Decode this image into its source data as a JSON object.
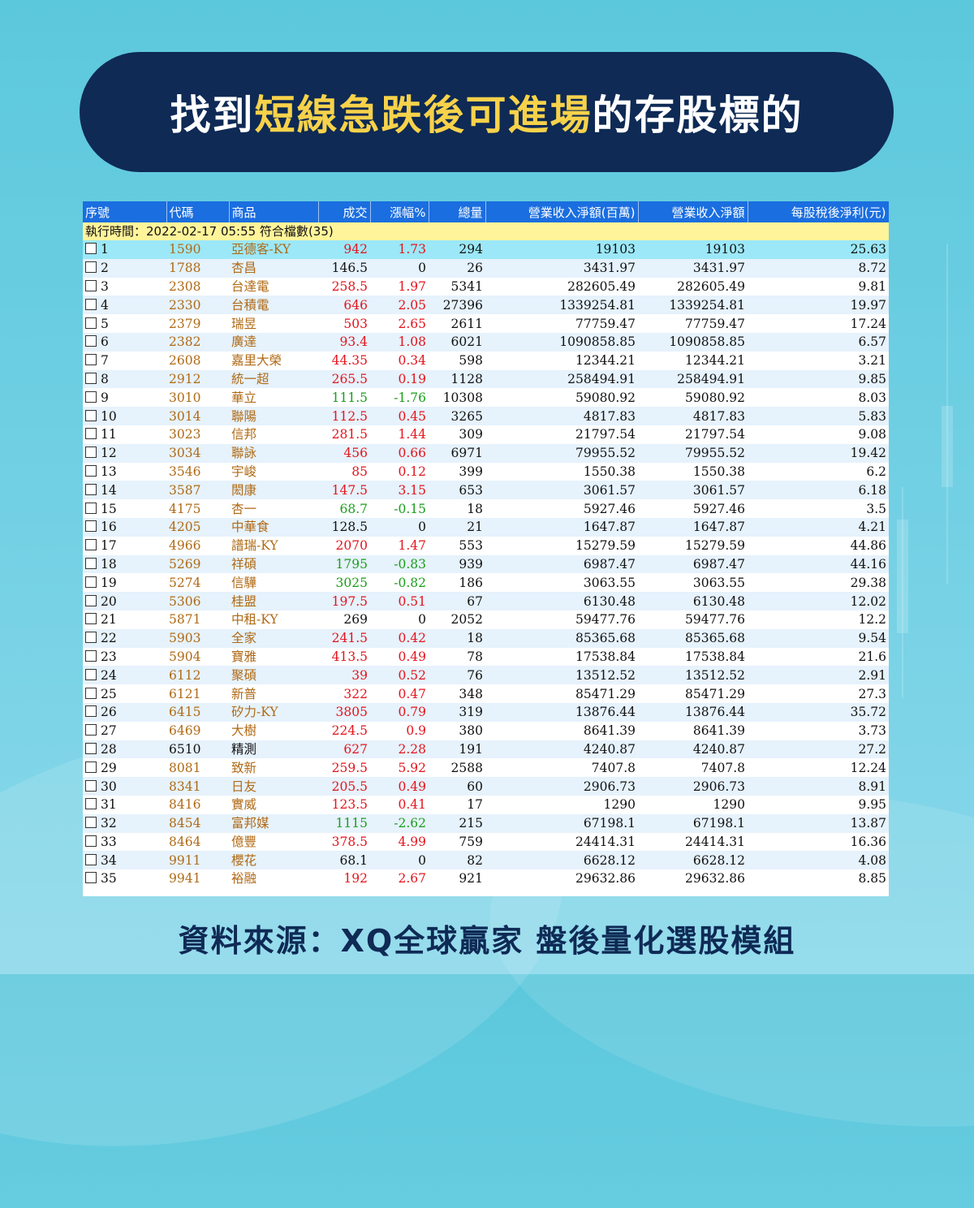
{
  "banner": {
    "title_part1": "找到",
    "title_highlight": "短線急跌後可進場",
    "title_part2": "的存股標的"
  },
  "table": {
    "columns": [
      "序號",
      "代碼",
      "商品",
      "成交",
      "漲幅%",
      "總量",
      "營業收入淨額(百萬)",
      "營業收入淨額",
      "每股稅後淨利(元)"
    ],
    "info_row": "執行時間：2022-02-17 05:55 符合檔數(35)",
    "rows": [
      {
        "no": "1",
        "code": "1590",
        "name": "亞德客-KY",
        "price": "942",
        "change": "1.73",
        "volume": "294",
        "rev_m": "19103",
        "rev": "19103",
        "eps": "25.63",
        "dir": "up"
      },
      {
        "no": "2",
        "code": "1788",
        "name": "杏昌",
        "price": "146.5",
        "change": "0",
        "volume": "26",
        "rev_m": "3431.97",
        "rev": "3431.97",
        "eps": "8.72",
        "dir": "flat"
      },
      {
        "no": "3",
        "code": "2308",
        "name": "台達電",
        "price": "258.5",
        "change": "1.97",
        "volume": "5341",
        "rev_m": "282605.49",
        "rev": "282605.49",
        "eps": "9.81",
        "dir": "up"
      },
      {
        "no": "4",
        "code": "2330",
        "name": "台積電",
        "price": "646",
        "change": "2.05",
        "volume": "27396",
        "rev_m": "1339254.81",
        "rev": "1339254.81",
        "eps": "19.97",
        "dir": "up"
      },
      {
        "no": "5",
        "code": "2379",
        "name": "瑞昱",
        "price": "503",
        "change": "2.65",
        "volume": "2611",
        "rev_m": "77759.47",
        "rev": "77759.47",
        "eps": "17.24",
        "dir": "up"
      },
      {
        "no": "6",
        "code": "2382",
        "name": "廣達",
        "price": "93.4",
        "change": "1.08",
        "volume": "6021",
        "rev_m": "1090858.85",
        "rev": "1090858.85",
        "eps": "6.57",
        "dir": "up"
      },
      {
        "no": "7",
        "code": "2608",
        "name": "嘉里大榮",
        "price": "44.35",
        "change": "0.34",
        "volume": "598",
        "rev_m": "12344.21",
        "rev": "12344.21",
        "eps": "3.21",
        "dir": "up"
      },
      {
        "no": "8",
        "code": "2912",
        "name": "統一超",
        "price": "265.5",
        "change": "0.19",
        "volume": "1128",
        "rev_m": "258494.91",
        "rev": "258494.91",
        "eps": "9.85",
        "dir": "up"
      },
      {
        "no": "9",
        "code": "3010",
        "name": "華立",
        "price": "111.5",
        "change": "-1.76",
        "volume": "10308",
        "rev_m": "59080.92",
        "rev": "59080.92",
        "eps": "8.03",
        "dir": "down"
      },
      {
        "no": "10",
        "code": "3014",
        "name": "聯陽",
        "price": "112.5",
        "change": "0.45",
        "volume": "3265",
        "rev_m": "4817.83",
        "rev": "4817.83",
        "eps": "5.83",
        "dir": "up"
      },
      {
        "no": "11",
        "code": "3023",
        "name": "信邦",
        "price": "281.5",
        "change": "1.44",
        "volume": "309",
        "rev_m": "21797.54",
        "rev": "21797.54",
        "eps": "9.08",
        "dir": "up"
      },
      {
        "no": "12",
        "code": "3034",
        "name": "聯詠",
        "price": "456",
        "change": "0.66",
        "volume": "6971",
        "rev_m": "79955.52",
        "rev": "79955.52",
        "eps": "19.42",
        "dir": "up"
      },
      {
        "no": "13",
        "code": "3546",
        "name": "宇峻",
        "price": "85",
        "change": "0.12",
        "volume": "399",
        "rev_m": "1550.38",
        "rev": "1550.38",
        "eps": "6.2",
        "dir": "up"
      },
      {
        "no": "14",
        "code": "3587",
        "name": "閎康",
        "price": "147.5",
        "change": "3.15",
        "volume": "653",
        "rev_m": "3061.57",
        "rev": "3061.57",
        "eps": "6.18",
        "dir": "up"
      },
      {
        "no": "15",
        "code": "4175",
        "name": "杏一",
        "price": "68.7",
        "change": "-0.15",
        "volume": "18",
        "rev_m": "5927.46",
        "rev": "5927.46",
        "eps": "3.5",
        "dir": "down"
      },
      {
        "no": "16",
        "code": "4205",
        "name": "中華食",
        "price": "128.5",
        "change": "0",
        "volume": "21",
        "rev_m": "1647.87",
        "rev": "1647.87",
        "eps": "4.21",
        "dir": "flat"
      },
      {
        "no": "17",
        "code": "4966",
        "name": "譜瑞-KY",
        "price": "2070",
        "change": "1.47",
        "volume": "553",
        "rev_m": "15279.59",
        "rev": "15279.59",
        "eps": "44.86",
        "dir": "up"
      },
      {
        "no": "18",
        "code": "5269",
        "name": "祥碩",
        "price": "1795",
        "change": "-0.83",
        "volume": "939",
        "rev_m": "6987.47",
        "rev": "6987.47",
        "eps": "44.16",
        "dir": "down"
      },
      {
        "no": "19",
        "code": "5274",
        "name": "信驊",
        "price": "3025",
        "change": "-0.82",
        "volume": "186",
        "rev_m": "3063.55",
        "rev": "3063.55",
        "eps": "29.38",
        "dir": "down"
      },
      {
        "no": "20",
        "code": "5306",
        "name": "桂盟",
        "price": "197.5",
        "change": "0.51",
        "volume": "67",
        "rev_m": "6130.48",
        "rev": "6130.48",
        "eps": "12.02",
        "dir": "up"
      },
      {
        "no": "21",
        "code": "5871",
        "name": "中租-KY",
        "price": "269",
        "change": "0",
        "volume": "2052",
        "rev_m": "59477.76",
        "rev": "59477.76",
        "eps": "12.2",
        "dir": "flat"
      },
      {
        "no": "22",
        "code": "5903",
        "name": "全家",
        "price": "241.5",
        "change": "0.42",
        "volume": "18",
        "rev_m": "85365.68",
        "rev": "85365.68",
        "eps": "9.54",
        "dir": "up"
      },
      {
        "no": "23",
        "code": "5904",
        "name": "寶雅",
        "price": "413.5",
        "change": "0.49",
        "volume": "78",
        "rev_m": "17538.84",
        "rev": "17538.84",
        "eps": "21.6",
        "dir": "up"
      },
      {
        "no": "24",
        "code": "6112",
        "name": "聚碩",
        "price": "39",
        "change": "0.52",
        "volume": "76",
        "rev_m": "13512.52",
        "rev": "13512.52",
        "eps": "2.91",
        "dir": "up"
      },
      {
        "no": "25",
        "code": "6121",
        "name": "新普",
        "price": "322",
        "change": "0.47",
        "volume": "348",
        "rev_m": "85471.29",
        "rev": "85471.29",
        "eps": "27.3",
        "dir": "up"
      },
      {
        "no": "26",
        "code": "6415",
        "name": "矽力-KY",
        "price": "3805",
        "change": "0.79",
        "volume": "319",
        "rev_m": "13876.44",
        "rev": "13876.44",
        "eps": "35.72",
        "dir": "up"
      },
      {
        "no": "27",
        "code": "6469",
        "name": "大樹",
        "price": "224.5",
        "change": "0.9",
        "volume": "380",
        "rev_m": "8641.39",
        "rev": "8641.39",
        "eps": "3.73",
        "dir": "up"
      },
      {
        "no": "28",
        "code": "6510",
        "name": "精測",
        "price": "627",
        "change": "2.28",
        "volume": "191",
        "rev_m": "4240.87",
        "rev": "4240.87",
        "eps": "27.2",
        "dir": "up",
        "black": true
      },
      {
        "no": "29",
        "code": "8081",
        "name": "致新",
        "price": "259.5",
        "change": "5.92",
        "volume": "2588",
        "rev_m": "7407.8",
        "rev": "7407.8",
        "eps": "12.24",
        "dir": "up"
      },
      {
        "no": "30",
        "code": "8341",
        "name": "日友",
        "price": "205.5",
        "change": "0.49",
        "volume": "60",
        "rev_m": "2906.73",
        "rev": "2906.73",
        "eps": "8.91",
        "dir": "up"
      },
      {
        "no": "31",
        "code": "8416",
        "name": "實威",
        "price": "123.5",
        "change": "0.41",
        "volume": "17",
        "rev_m": "1290",
        "rev": "1290",
        "eps": "9.95",
        "dir": "up"
      },
      {
        "no": "32",
        "code": "8454",
        "name": "富邦媒",
        "price": "1115",
        "change": "-2.62",
        "volume": "215",
        "rev_m": "67198.1",
        "rev": "67198.1",
        "eps": "13.87",
        "dir": "down"
      },
      {
        "no": "33",
        "code": "8464",
        "name": "億豐",
        "price": "378.5",
        "change": "4.99",
        "volume": "759",
        "rev_m": "24414.31",
        "rev": "24414.31",
        "eps": "16.36",
        "dir": "up"
      },
      {
        "no": "34",
        "code": "9911",
        "name": "櫻花",
        "price": "68.1",
        "change": "0",
        "volume": "82",
        "rev_m": "6628.12",
        "rev": "6628.12",
        "eps": "4.08",
        "dir": "flat"
      },
      {
        "no": "35",
        "code": "9941",
        "name": "裕融",
        "price": "192",
        "change": "2.67",
        "volume": "921",
        "rev_m": "29632.86",
        "rev": "29632.86",
        "eps": "8.85",
        "dir": "up"
      }
    ]
  },
  "footer": "資料來源：XQ全球贏家 盤後量化選股模組",
  "colors": {
    "banner_bg": "#0e2a55",
    "highlight": "#f7d24a",
    "header_bg": "#1a6ee0",
    "info_bg": "#fff49a",
    "selected_row": "#9ce8f8",
    "up": "#e5131c",
    "down": "#1a9e1a"
  }
}
